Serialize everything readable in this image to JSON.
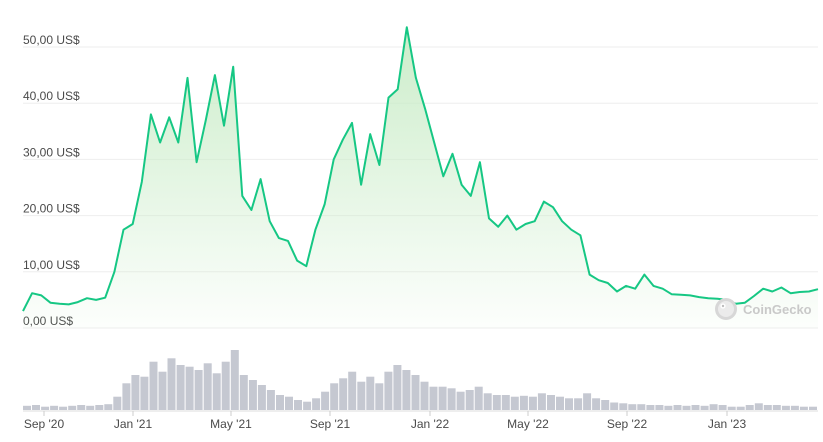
{
  "chart_data": {
    "type": "area",
    "ylim": [
      0,
      55
    ],
    "y_ticks": [
      {
        "value": 0,
        "label": "0,00 US$"
      },
      {
        "value": 10,
        "label": "10,00 US$"
      },
      {
        "value": 20,
        "label": "20,00 US$"
      },
      {
        "value": 30,
        "label": "30,00 US$"
      },
      {
        "value": 40,
        "label": "40,00 US$"
      },
      {
        "value": 50,
        "label": "50,00 US$"
      }
    ],
    "x_ticks": [
      "Sep '20",
      "Jan '21",
      "May '21",
      "Sep '21",
      "Jan '22",
      "May '22",
      "Sep '22",
      "Jan '23"
    ],
    "grid": true,
    "series": [
      {
        "line_color": "#16c784",
        "fill_color": "#c9ecc7",
        "x": [
          "Sep '20",
          "Sep '20",
          "Sep '20",
          "Oct '20",
          "Oct '20",
          "Nov '20",
          "Nov '20",
          "Dec '20",
          "Dec '20",
          "Jan '21",
          "Jan '21",
          "Jan '21",
          "Jan '21",
          "Feb '21",
          "Feb '21",
          "Feb '21",
          "Mar '21",
          "Mar '21",
          "Mar '21",
          "Apr '21",
          "Apr '21",
          "Apr '21",
          "May '21",
          "May '21",
          "May '21",
          "May '21",
          "May '21",
          "Jun '21",
          "Jun '21",
          "Jun '21",
          "Jul '21",
          "Jul '21",
          "Jul '21",
          "Aug '21",
          "Aug '21",
          "Aug '21",
          "Sep '21",
          "Sep '21",
          "Sep '21",
          "Oct '21",
          "Oct '21",
          "Oct '21",
          "Nov '21",
          "Nov '21",
          "Nov '21",
          "Nov '21",
          "Dec '21",
          "Dec '21",
          "Dec '21",
          "Dec '21",
          "Jan '22",
          "Jan '22",
          "Jan '22",
          "Feb '22",
          "Feb '22",
          "Feb '22",
          "Mar '22",
          "Mar '22",
          "Mar '22",
          "Apr '22",
          "Apr '22",
          "Apr '22",
          "May '22",
          "May '22",
          "May '22",
          "Jun '22",
          "Jun '22",
          "Jul '22",
          "Jul '22",
          "Aug '22",
          "Aug '22",
          "Aug '22",
          "Sep '22",
          "Sep '22",
          "Oct '22",
          "Oct '22",
          "Nov '22",
          "Nov '22",
          "Dec '22",
          "Dec '22",
          "Jan '23",
          "Jan '23",
          "Feb '23",
          "Feb '23",
          "Mar '23",
          "Mar '23",
          "Apr '23",
          "Apr '23"
        ],
        "values": [
          3.0,
          6.2,
          5.8,
          4.5,
          4.3,
          4.2,
          4.6,
          5.3,
          5.0,
          5.4,
          10.0,
          17.5,
          18.5,
          26.0,
          38.0,
          33.0,
          37.5,
          33.0,
          44.5,
          29.5,
          37.0,
          45.0,
          36.0,
          46.5,
          23.5,
          21.0,
          26.5,
          19.0,
          16.0,
          15.5,
          12.0,
          11.0,
          17.5,
          22.0,
          30.0,
          33.5,
          36.5,
          25.5,
          34.5,
          29.0,
          41.0,
          42.5,
          53.5,
          44.5,
          39.0,
          33.0,
          27.0,
          31.0,
          25.5,
          23.5,
          29.5,
          19.5,
          18.0,
          20.0,
          17.5,
          18.5,
          19.0,
          22.5,
          21.5,
          19.0,
          17.5,
          16.5,
          9.5,
          8.5,
          8.0,
          6.5,
          7.5,
          7.0,
          9.5,
          7.5,
          7.0,
          6.0,
          5.9,
          5.8,
          5.5,
          5.3,
          5.2,
          5.0,
          4.3,
          4.5,
          5.7,
          7.0,
          6.5,
          7.2,
          6.2,
          6.4,
          6.5,
          6.9
        ]
      }
    ],
    "volume": {
      "color": "#c5c8d1",
      "values": [
        0.5,
        0.6,
        0.4,
        0.5,
        0.4,
        0.5,
        0.6,
        0.5,
        0.6,
        0.7,
        1.6,
        3.2,
        4.2,
        4.0,
        5.8,
        4.6,
        6.2,
        5.4,
        5.2,
        4.8,
        5.6,
        4.4,
        5.8,
        7.2,
        4.2,
        3.6,
        3.0,
        2.4,
        1.8,
        1.6,
        1.2,
        1.0,
        1.4,
        2.2,
        3.2,
        3.8,
        4.6,
        3.4,
        4.0,
        3.2,
        4.6,
        5.4,
        4.8,
        4.2,
        3.4,
        2.8,
        2.8,
        2.6,
        2.2,
        2.4,
        2.8,
        2.0,
        1.8,
        1.8,
        1.6,
        1.7,
        1.6,
        2.0,
        1.8,
        1.6,
        1.4,
        1.4,
        2.0,
        1.4,
        1.2,
        0.9,
        0.8,
        0.7,
        0.7,
        0.6,
        0.6,
        0.5,
        0.6,
        0.5,
        0.6,
        0.5,
        0.7,
        0.6,
        0.4,
        0.4,
        0.6,
        0.8,
        0.6,
        0.6,
        0.5,
        0.5,
        0.4,
        0.4
      ]
    }
  },
  "watermark": {
    "text": "CoinGecko"
  }
}
